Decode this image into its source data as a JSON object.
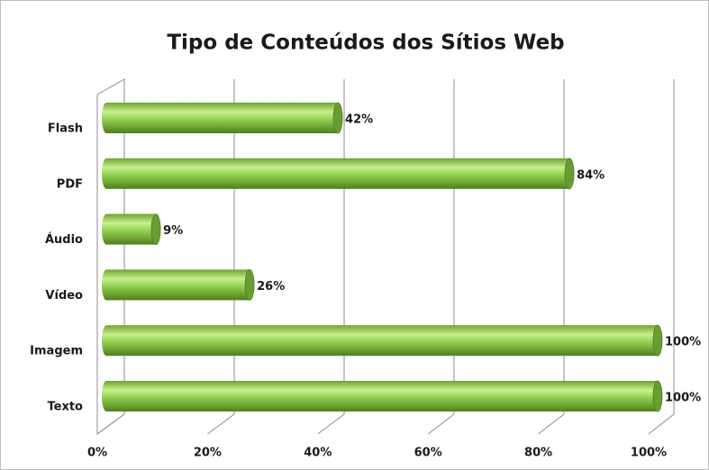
{
  "chart_data": {
    "type": "bar",
    "orientation": "horizontal",
    "title": "Tipo de Conteúdos dos Sítios Web",
    "categories": [
      "Flash",
      "PDF",
      "Áudio",
      "Vídeo",
      "Imagem",
      "Texto"
    ],
    "values": [
      42,
      84,
      9,
      26,
      100,
      100
    ],
    "value_labels": [
      "42%",
      "84%",
      "9%",
      "26%",
      "100%",
      "100%"
    ],
    "color": "#92d050",
    "xlim": [
      0,
      100
    ],
    "xticks": [
      {
        "value": 0,
        "label": "0%"
      },
      {
        "value": 20,
        "label": "20%"
      },
      {
        "value": 40,
        "label": "40%"
      },
      {
        "value": 60,
        "label": "60%"
      },
      {
        "value": 80,
        "label": "80%"
      },
      {
        "value": 100,
        "label": "100%"
      }
    ],
    "grid": true
  }
}
